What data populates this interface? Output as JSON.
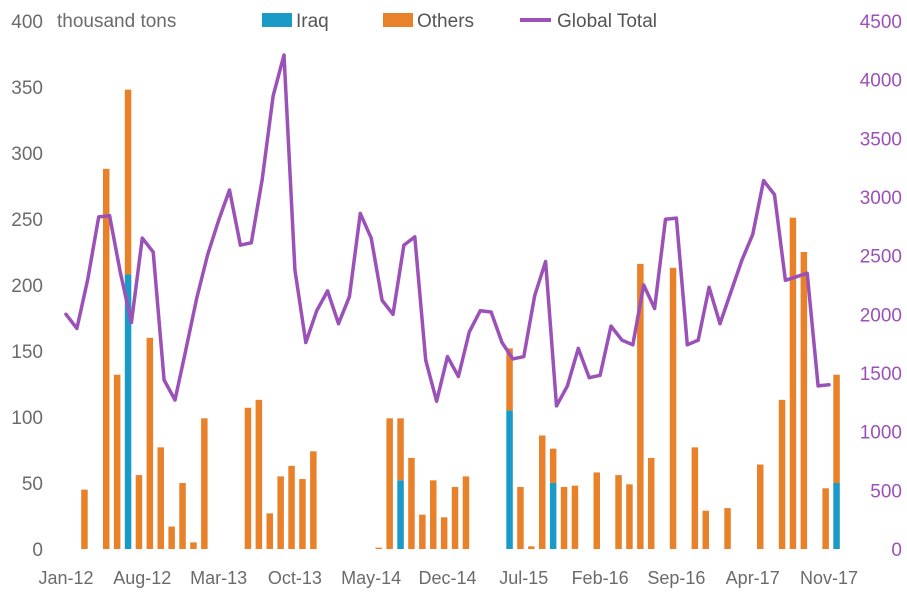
{
  "chart_data": {
    "type": "bar+line",
    "unit_label": "thousand tons",
    "legend": [
      {
        "key": "iraq",
        "label": "Iraq",
        "color": "#1a9bc7",
        "kind": "bar"
      },
      {
        "key": "others",
        "label": "Others",
        "color": "#e8812a",
        "kind": "bar"
      },
      {
        "key": "global",
        "label": "Global Total",
        "color": "#9b51b8",
        "kind": "line"
      }
    ],
    "y_left": {
      "min": 0,
      "max": 400,
      "ticks": [
        0,
        50,
        100,
        150,
        200,
        250,
        300,
        350,
        400
      ]
    },
    "y_right": {
      "min": 0,
      "max": 4500,
      "ticks": [
        0,
        500,
        1000,
        1500,
        2000,
        2500,
        3000,
        3500,
        4000,
        4500
      ]
    },
    "x_tick_labels": [
      "Jan-12",
      "Aug-12",
      "Mar-13",
      "Oct-13",
      "May-14",
      "Dec-14",
      "Jul-15",
      "Feb-16",
      "Sep-16",
      "Apr-17",
      "Nov-17"
    ],
    "months": [
      "Jan-12",
      "Feb-12",
      "Mar-12",
      "Apr-12",
      "May-12",
      "Jun-12",
      "Jul-12",
      "Aug-12",
      "Sep-12",
      "Oct-12",
      "Nov-12",
      "Dec-12",
      "Jan-13",
      "Feb-13",
      "Mar-13",
      "Apr-13",
      "May-13",
      "Jun-13",
      "Jul-13",
      "Aug-13",
      "Sep-13",
      "Oct-13",
      "Nov-13",
      "Dec-13",
      "Jan-14",
      "Feb-14",
      "Mar-14",
      "Apr-14",
      "May-14",
      "Jun-14",
      "Jul-14",
      "Aug-14",
      "Sep-14",
      "Oct-14",
      "Nov-14",
      "Dec-14",
      "Jan-15",
      "Feb-15",
      "Mar-15",
      "Apr-15",
      "May-15",
      "Jun-15",
      "Jul-15",
      "Aug-15",
      "Sep-15",
      "Oct-15",
      "Nov-15",
      "Dec-15",
      "Jan-16",
      "Feb-16",
      "Mar-16",
      "Apr-16",
      "May-16",
      "Jun-16",
      "Jul-16",
      "Aug-16",
      "Sep-16",
      "Oct-16",
      "Nov-16",
      "Dec-16",
      "Jan-17",
      "Feb-17",
      "Mar-17",
      "Apr-17",
      "May-17",
      "Jun-17",
      "Jul-17",
      "Aug-17",
      "Sep-17",
      "Oct-17",
      "Nov-17"
    ],
    "series": [
      {
        "name": "Iraq",
        "axis": "left",
        "values": [
          0,
          0,
          0,
          0,
          0,
          208,
          0,
          0,
          0,
          0,
          0,
          0,
          0,
          0,
          0,
          0,
          0,
          0,
          0,
          0,
          0,
          0,
          0,
          0,
          0,
          0,
          0,
          0,
          0,
          0,
          52,
          0,
          0,
          0,
          0,
          0,
          0,
          0,
          0,
          0,
          105,
          0,
          0,
          0,
          50,
          0,
          0,
          0,
          0,
          0,
          0,
          0,
          0,
          0,
          0,
          0,
          0,
          0,
          0,
          0,
          0,
          0,
          0,
          0,
          0,
          0,
          0,
          0,
          0,
          0,
          50
        ]
      },
      {
        "name": "Others",
        "axis": "left",
        "values": [
          0,
          45,
          0,
          288,
          132,
          140,
          56,
          160,
          77,
          17,
          50,
          5,
          99,
          0,
          0,
          0,
          107,
          113,
          27,
          55,
          63,
          53,
          74,
          0,
          0,
          0,
          0,
          0,
          1,
          99,
          47,
          69,
          26,
          52,
          24,
          47,
          55,
          0,
          0,
          0,
          47,
          47,
          2,
          86,
          26,
          47,
          48,
          0,
          58,
          0,
          56,
          49,
          216,
          69,
          0,
          213,
          0,
          77,
          29,
          0,
          31,
          0,
          0,
          64,
          0,
          113,
          251,
          225,
          0,
          46,
          82
        ]
      },
      {
        "name": "Global Total",
        "axis": "right",
        "values": [
          2000,
          1880,
          2300,
          2830,
          2840,
          2350,
          1930,
          2650,
          2530,
          1440,
          1270,
          1700,
          2140,
          2510,
          2800,
          3060,
          2590,
          2610,
          3150,
          3860,
          4210,
          2380,
          1760,
          2030,
          2200,
          1920,
          2150,
          2860,
          2650,
          2120,
          2000,
          2590,
          2660,
          1610,
          1260,
          1640,
          1470,
          1850,
          2030,
          2020,
          1760,
          1620,
          1640,
          2160,
          2450,
          1220,
          1390,
          1710,
          1460,
          1480,
          1900,
          1780,
          1740,
          2250,
          2050,
          2810,
          2820,
          1740,
          1780,
          2230,
          1920,
          2190,
          2460,
          2680,
          3140,
          3020,
          2290,
          2320,
          2350,
          1390,
          1400
        ]
      }
    ]
  }
}
